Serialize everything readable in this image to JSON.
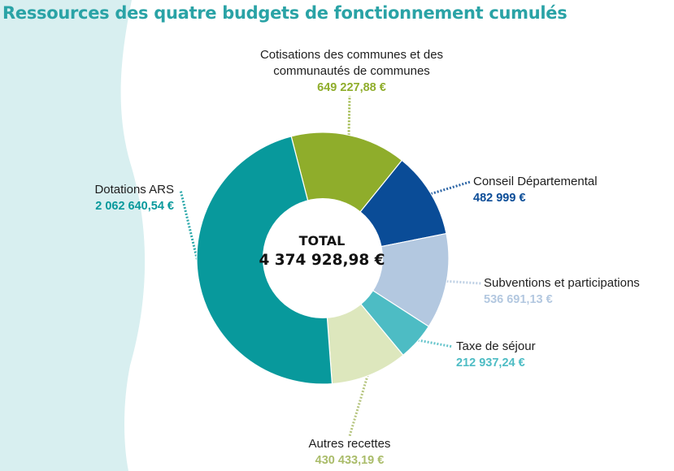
{
  "title": "Ressources des quatre budgets de fonctionnement cumulés",
  "colors": {
    "title": "#2aa3a6",
    "background_band": "#d8eff0",
    "connector": "#d9d9d9"
  },
  "chart_data": {
    "type": "pie",
    "style": "donut",
    "title": "Ressources des quatre budgets de fonctionnement cumulés",
    "center_label": "TOTAL",
    "total": 4374928.98,
    "total_label": "4 374 928,98 €",
    "unit": "€",
    "slices": [
      {
        "label": "Cotisations des communes et des communautés de communes",
        "label_lines": [
          "Cotisations des communes et des",
          "communautés de communes"
        ],
        "value": 649227.88,
        "value_label": "649 227,88 €",
        "color": "#8fad2b",
        "value_color": "#8fad2b"
      },
      {
        "label": "Conseil Départemental",
        "label_lines": [
          "Conseil Départemental"
        ],
        "value": 482999,
        "value_label": "482 999 €",
        "color": "#0a4c97",
        "value_color": "#0a4c97"
      },
      {
        "label": "Subventions et participations",
        "label_lines": [
          "Subventions et participations"
        ],
        "value": 536691.13,
        "value_label": "536 691,13 €",
        "color": "#b3c8e0",
        "value_color": "#b3c8e0"
      },
      {
        "label": "Taxe de séjour",
        "label_lines": [
          "Taxe de séjour"
        ],
        "value": 212937.24,
        "value_label": "212 937,24 €",
        "color": "#4dbcc4",
        "value_color": "#4dbcc4"
      },
      {
        "label": "Autres recettes",
        "label_lines": [
          "Autres recettes"
        ],
        "value": 430433.19,
        "value_label": "430 433,19 €",
        "color": "#dde7bd",
        "value_color": "#aabc6a"
      },
      {
        "label": "Dotations ARS",
        "label_lines": [
          "Dotations ARS"
        ],
        "value": 2062640.54,
        "value_label": "2 062 640,54 €",
        "color": "#08999c",
        "value_color": "#08999c"
      }
    ],
    "legend": "none"
  }
}
